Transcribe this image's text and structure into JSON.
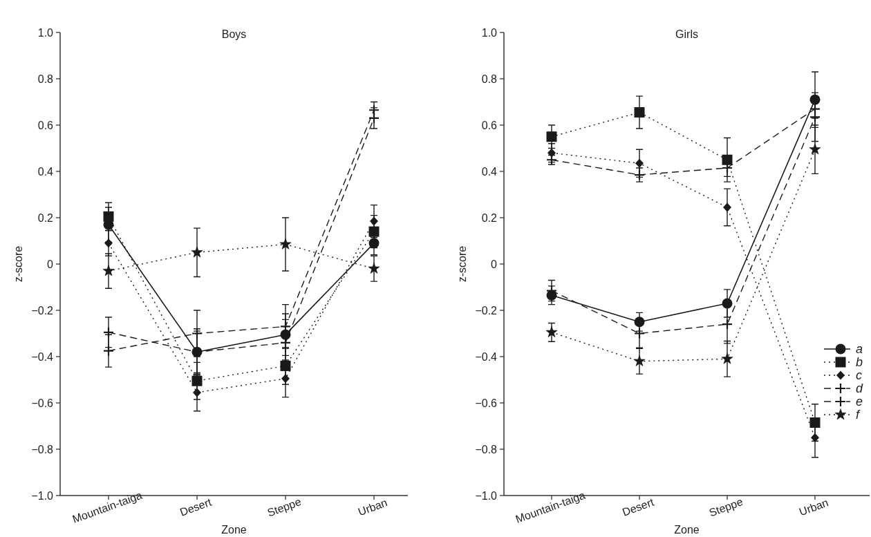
{
  "chart_data": [
    {
      "type": "line",
      "title": "Boys",
      "xlabel": "Zone",
      "ylabel": "z-score",
      "categories": [
        "Mountain-taiga",
        "Desert",
        "Steppe",
        "Urban"
      ],
      "ylim": [
        -1,
        1
      ],
      "yticks": [
        {
          "value": 1,
          "label": "1.0"
        },
        {
          "value": 0.8,
          "label": "0.8"
        },
        {
          "value": 0.6,
          "label": "0.6"
        },
        {
          "value": 0.4,
          "label": "0.4"
        },
        {
          "value": 0.2,
          "label": "0.2"
        },
        {
          "value": 0,
          "label": "0"
        },
        {
          "value": -0.2,
          "label": "−0.2"
        },
        {
          "value": -0.4,
          "label": "−0.4"
        },
        {
          "value": -0.6,
          "label": "−0.6"
        },
        {
          "value": -0.8,
          "label": "−0.8"
        },
        {
          "value": -1,
          "label": "−1.0"
        }
      ],
      "grid": false,
      "legend": false,
      "series": [
        {
          "color": "#1a1a1a",
          "marker": "circle",
          "line_style": "solid",
          "values": [
            0.17,
            -0.38,
            -0.305,
            0.09
          ],
          "errors": [
            0.075,
            0.09,
            0.09,
            0.05
          ]
        },
        {
          "color": "#1a1a1a",
          "marker": "square",
          "line_style": "dotted",
          "values": [
            0.205,
            -0.505,
            -0.44,
            0.14
          ],
          "errors": [
            0.06,
            0.08,
            0.08,
            0.07
          ]
        },
        {
          "color": "#1a1a1a",
          "marker": "diamond",
          "line_style": "dotted",
          "values": [
            0.09,
            -0.555,
            -0.495,
            0.185
          ],
          "errors": [
            0.055,
            0.08,
            0.08,
            0.07
          ]
        },
        {
          "color": "#1a1a1a",
          "marker": "cross",
          "line_style": "dashed",
          "values": [
            -0.295,
            -0.38,
            -0.34,
            0.63
          ],
          "errors": [
            0.065,
            0.1,
            0.1,
            0.045
          ]
        },
        {
          "color": "#1a1a1a",
          "marker": "cross",
          "line_style": "dashed",
          "values": [
            -0.375,
            -0.3,
            -0.27,
            0.665
          ],
          "errors": [
            0.07,
            0.1,
            0.095,
            0.035
          ]
        },
        {
          "color": "#1a1a1a",
          "marker": "star",
          "line_style": "dotted",
          "values": [
            -0.03,
            0.05,
            0.085,
            -0.02
          ],
          "errors": [
            0.075,
            0.105,
            0.115,
            0.055
          ]
        }
      ]
    },
    {
      "type": "line",
      "title": "Girls",
      "xlabel": "Zone",
      "ylabel": "z-score",
      "categories": [
        "Mountain-taiga",
        "Desert",
        "Steppe",
        "Urban"
      ],
      "ylim": [
        -1,
        1
      ],
      "yticks": [
        {
          "value": 1,
          "label": "1.0"
        },
        {
          "value": 0.8,
          "label": "0.8"
        },
        {
          "value": 0.6,
          "label": "0.6"
        },
        {
          "value": 0.4,
          "label": "0.4"
        },
        {
          "value": 0.2,
          "label": "0.2"
        },
        {
          "value": 0,
          "label": "0"
        },
        {
          "value": -0.2,
          "label": "−0.2"
        },
        {
          "value": -0.4,
          "label": "−0.4"
        },
        {
          "value": -0.6,
          "label": "−0.6"
        },
        {
          "value": -0.8,
          "label": "−0.8"
        },
        {
          "value": -1,
          "label": "−1.0"
        }
      ],
      "grid": false,
      "legend": "bottom right",
      "series": [
        {
          "name": "a",
          "color": "#1a1a1a",
          "marker": "circle",
          "line_style": "solid",
          "values": [
            -0.135,
            -0.25,
            -0.17,
            0.71
          ],
          "errors": [
            0.04,
            0.04,
            0.06,
            0.12
          ]
        },
        {
          "name": "b",
          "color": "#1a1a1a",
          "marker": "square",
          "line_style": "dotted",
          "values": [
            0.55,
            0.655,
            0.45,
            -0.685
          ],
          "errors": [
            0.05,
            0.07,
            0.095,
            0.08
          ]
        },
        {
          "name": "c",
          "color": "#1a1a1a",
          "marker": "diamond",
          "line_style": "dotted",
          "values": [
            0.48,
            0.435,
            0.245,
            -0.75
          ],
          "errors": [
            0.04,
            0.06,
            0.08,
            0.085
          ]
        },
        {
          "name": "d",
          "color": "#1a1a1a",
          "marker": "cross",
          "line_style": "dashed",
          "values": [
            0.45,
            0.385,
            0.415,
            0.67
          ],
          "errors": [
            0.02,
            0.03,
            0.037,
            0.04
          ]
        },
        {
          "name": "e",
          "color": "#1a1a1a",
          "marker": "cross",
          "line_style": "dashed",
          "values": [
            -0.115,
            -0.3,
            -0.26,
            0.635
          ],
          "errors": [
            0.045,
            0.062,
            0.083,
            0.105
          ]
        },
        {
          "name": "f",
          "color": "#1a1a1a",
          "marker": "star",
          "line_style": "dotted",
          "values": [
            -0.295,
            -0.42,
            -0.41,
            0.495
          ],
          "errors": [
            0.04,
            0.055,
            0.077,
            0.105
          ]
        }
      ]
    }
  ]
}
